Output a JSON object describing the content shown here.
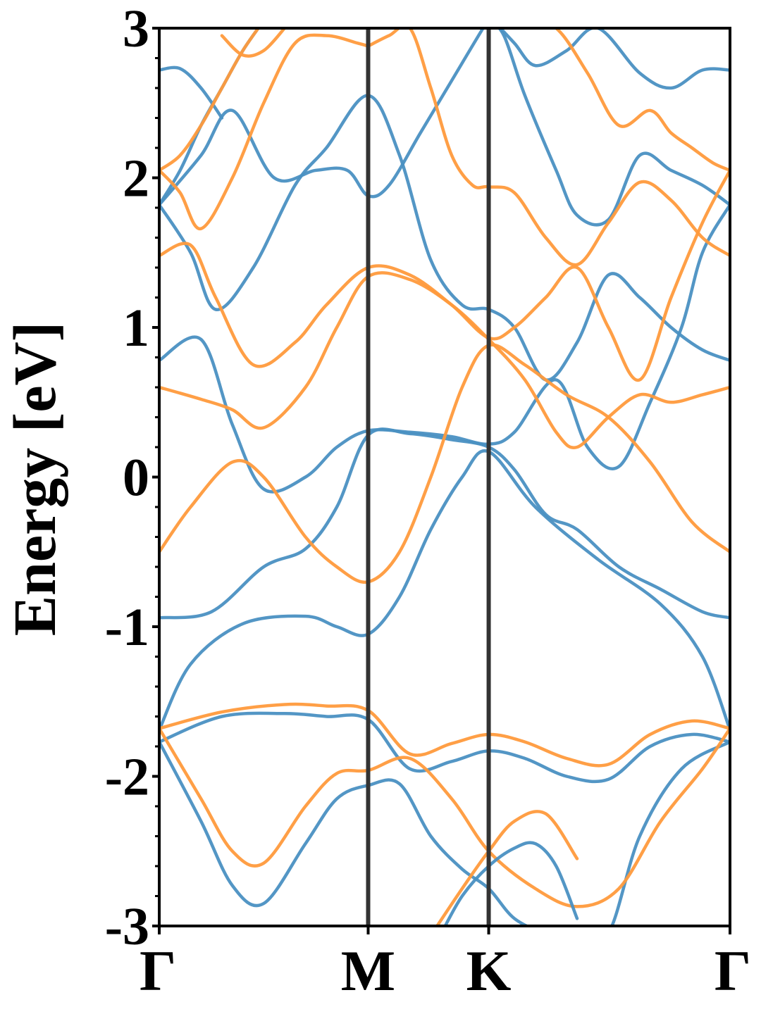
{
  "chart_data": {
    "type": "line",
    "title": "",
    "xlabel": "",
    "ylabel": "Energy [eV]",
    "ylim": [
      -3,
      3
    ],
    "yticks": [
      -3,
      -2,
      -1,
      0,
      1,
      2,
      3
    ],
    "ytick_labels": [
      "-3",
      "-2",
      "-1",
      "0",
      "1",
      "2",
      "3"
    ],
    "x_points": [
      {
        "label": "Γ",
        "pos": 0.0
      },
      {
        "label": "M",
        "pos": 1.0
      },
      {
        "label": "K",
        "pos": 1.577
      },
      {
        "label": "Γ",
        "pos": 2.732
      }
    ],
    "xlim": [
      0,
      2.732
    ],
    "grid": false,
    "colors": {
      "spin_up": "#4a90c2",
      "spin_down": "#ff9a3c",
      "high_symmetry_line": "#333333"
    },
    "series": [
      {
        "color_key": "spin_up",
        "x": [
          0,
          0.2,
          0.35,
          0.5,
          0.7,
          0.85,
          1.0,
          1.15,
          1.3,
          1.45,
          1.577,
          1.7,
          1.85,
          2.0,
          2.15,
          2.3,
          2.5,
          2.732
        ],
        "y": [
          -1.77,
          -2.3,
          -2.73,
          -2.85,
          -2.45,
          -2.15,
          -2.06,
          -2.05,
          -2.4,
          -2.62,
          -2.75,
          -2.95,
          -3.05,
          -3.1,
          -3.05,
          -2.4,
          -1.95,
          -1.77
        ]
      },
      {
        "color_key": "spin_up",
        "x": [
          0,
          0.3,
          0.6,
          0.8,
          1.0,
          1.2,
          1.4,
          1.577,
          1.75,
          1.95,
          2.15,
          2.35,
          2.55,
          2.732
        ],
        "y": [
          -1.77,
          -1.6,
          -1.58,
          -1.6,
          -1.62,
          -1.95,
          -1.9,
          -1.83,
          -1.88,
          -2.0,
          -2.02,
          -1.8,
          -1.72,
          -1.77
        ]
      },
      {
        "color_key": "spin_up",
        "x": [
          0,
          0.15,
          0.4,
          0.7,
          0.85,
          1.0,
          1.15,
          1.3,
          1.45,
          1.577,
          1.8,
          2.1,
          2.4,
          2.6,
          2.732
        ],
        "y": [
          -1.69,
          -1.25,
          -0.98,
          -0.93,
          -1.0,
          -1.05,
          -0.8,
          -0.35,
          0.0,
          0.17,
          -0.2,
          -0.55,
          -0.85,
          -1.2,
          -1.69
        ]
      },
      {
        "color_key": "spin_up",
        "x": [
          0,
          0.25,
          0.5,
          0.7,
          0.85,
          1.0,
          1.2,
          1.4,
          1.577,
          1.7,
          1.85,
          2.0,
          2.2,
          2.4,
          2.6,
          2.732
        ],
        "y": [
          -0.94,
          -0.9,
          -0.6,
          -0.48,
          -0.2,
          0.28,
          0.29,
          0.25,
          0.2,
          0.05,
          -0.25,
          -0.35,
          -0.6,
          -0.75,
          -0.9,
          -0.94
        ]
      },
      {
        "color_key": "spin_up",
        "x": [
          0,
          0.2,
          0.35,
          0.5,
          0.7,
          0.85,
          1.0,
          1.2,
          1.4,
          1.577,
          1.7,
          1.9,
          2.05,
          2.2,
          2.35,
          2.5,
          2.6,
          2.732
        ],
        "y": [
          0.78,
          0.92,
          0.35,
          -0.08,
          0.0,
          0.2,
          0.31,
          0.3,
          0.27,
          0.22,
          0.3,
          0.65,
          0.2,
          0.07,
          0.5,
          1.0,
          1.5,
          1.82
        ]
      },
      {
        "color_key": "spin_up",
        "x": [
          0,
          0.15,
          0.27,
          0.45,
          0.65,
          0.8,
          1.0,
          1.15,
          1.3,
          1.45,
          1.577,
          1.7,
          1.85,
          2.0,
          2.15,
          2.3,
          2.45,
          2.6,
          2.732
        ],
        "y": [
          1.82,
          1.5,
          1.12,
          1.4,
          1.95,
          2.2,
          2.55,
          2.15,
          1.45,
          1.15,
          1.12,
          1.0,
          0.65,
          0.9,
          1.35,
          1.2,
          1.0,
          0.85,
          0.78
        ]
      },
      {
        "color_key": "spin_up",
        "x": [
          0,
          0.2,
          0.35,
          0.55,
          0.75,
          0.9,
          1.0,
          1.1,
          1.25,
          1.4,
          1.55,
          1.577
        ],
        "y": [
          1.82,
          2.15,
          2.45,
          2.0,
          2.05,
          2.05,
          1.88,
          1.95,
          2.3,
          2.65,
          3.0,
          3.05
        ]
      },
      {
        "color_key": "spin_up",
        "x": [
          1.577,
          1.65,
          1.75,
          1.9,
          2.0,
          2.15,
          2.3,
          2.45,
          2.6,
          2.732
        ],
        "y": [
          3.05,
          2.95,
          2.55,
          2.05,
          1.75,
          1.72,
          2.15,
          2.05,
          1.95,
          1.82
        ]
      },
      {
        "color_key": "spin_up",
        "x": [
          0,
          0.1,
          0.2,
          0.3,
          0.4,
          0.5
        ],
        "y": [
          1.82,
          2.05,
          2.35,
          2.6,
          2.85,
          3.05
        ]
      },
      {
        "color_key": "spin_up",
        "x": [
          0,
          0.1,
          0.2,
          0.3
        ],
        "y": [
          2.72,
          2.73,
          2.6,
          2.4
        ]
      },
      {
        "color_key": "spin_up",
        "x": [
          1.6,
          1.7,
          1.8,
          1.95,
          2.1,
          2.3,
          2.45,
          2.6,
          2.732
        ],
        "y": [
          3.05,
          2.9,
          2.75,
          2.85,
          3.0,
          2.7,
          2.6,
          2.72,
          2.72
        ]
      },
      {
        "color_key": "spin_down",
        "x": [
          0,
          0.2,
          0.35,
          0.5,
          0.7,
          0.85,
          1.0,
          1.2,
          1.4,
          1.577,
          1.8,
          2.0,
          2.2,
          2.4,
          2.6,
          2.732
        ],
        "y": [
          -1.68,
          -2.15,
          -2.5,
          -2.58,
          -2.2,
          -1.98,
          -1.96,
          -1.88,
          -2.15,
          -2.5,
          -2.75,
          -2.87,
          -2.75,
          -2.3,
          -1.95,
          -1.68
        ]
      },
      {
        "color_key": "spin_down",
        "x": [
          0,
          0.3,
          0.6,
          0.8,
          1.0,
          1.2,
          1.4,
          1.577,
          1.75,
          1.95,
          2.15,
          2.35,
          2.55,
          2.732
        ],
        "y": [
          -1.68,
          -1.57,
          -1.52,
          -1.53,
          -1.56,
          -1.85,
          -1.78,
          -1.72,
          -1.77,
          -1.88,
          -1.92,
          -1.72,
          -1.63,
          -1.68
        ]
      },
      {
        "color_key": "spin_down",
        "x": [
          0,
          0.15,
          0.35,
          0.5,
          0.7,
          0.85,
          1.0,
          1.15,
          1.3,
          1.45,
          1.577,
          1.75,
          1.95,
          2.15,
          2.35,
          2.55,
          2.732
        ],
        "y": [
          -0.5,
          -0.2,
          0.1,
          0.0,
          -0.4,
          -0.6,
          -0.7,
          -0.5,
          0.0,
          0.6,
          0.88,
          0.75,
          0.55,
          0.4,
          0.1,
          -0.3,
          -0.5
        ]
      },
      {
        "color_key": "spin_down",
        "x": [
          0,
          0.2,
          0.35,
          0.5,
          0.7,
          0.85,
          1.0,
          1.2,
          1.4,
          1.577,
          1.75,
          1.9,
          2.0,
          2.15,
          2.3,
          2.45,
          2.6,
          2.732
        ],
        "y": [
          0.6,
          0.52,
          0.45,
          0.33,
          0.6,
          1.0,
          1.34,
          1.32,
          1.15,
          0.92,
          0.65,
          0.3,
          0.2,
          0.4,
          0.55,
          0.5,
          0.55,
          0.6
        ]
      },
      {
        "color_key": "spin_down",
        "x": [
          0,
          0.15,
          0.27,
          0.45,
          0.65,
          0.8,
          1.0,
          1.2,
          1.4,
          1.577,
          1.7,
          1.85,
          2.0,
          2.15,
          2.3,
          2.45,
          2.6,
          2.732
        ],
        "y": [
          1.48,
          1.55,
          1.2,
          0.75,
          0.9,
          1.15,
          1.4,
          1.35,
          1.15,
          0.93,
          1.0,
          1.2,
          1.4,
          1.0,
          0.65,
          1.2,
          1.7,
          2.05
        ]
      },
      {
        "color_key": "spin_down",
        "x": [
          0,
          0.1,
          0.2,
          0.35,
          0.5,
          0.65,
          0.8,
          0.95,
          1.0
        ],
        "y": [
          2.05,
          1.9,
          1.66,
          2.0,
          2.5,
          2.9,
          2.95,
          2.9,
          2.88
        ]
      },
      {
        "color_key": "spin_down",
        "x": [
          1.0,
          1.1,
          1.2,
          1.3,
          1.4,
          1.5,
          1.577,
          1.7,
          1.85,
          2.0,
          2.15,
          2.3,
          2.45,
          2.6,
          2.732
        ],
        "y": [
          2.88,
          2.95,
          3.0,
          2.6,
          2.15,
          1.95,
          1.94,
          1.9,
          1.6,
          1.42,
          1.7,
          1.97,
          1.85,
          1.6,
          1.48
        ]
      },
      {
        "color_key": "spin_down",
        "x": [
          0,
          0.1,
          0.2,
          0.3,
          0.4,
          0.5
        ],
        "y": [
          2.05,
          2.15,
          2.35,
          2.6,
          2.85,
          3.05
        ]
      },
      {
        "color_key": "spin_down",
        "x": [
          1.75,
          1.9,
          2.05,
          2.2,
          2.35,
          2.45,
          2.55,
          2.65,
          2.732
        ],
        "y": [
          3.05,
          3.0,
          2.7,
          2.35,
          2.45,
          2.3,
          2.2,
          2.1,
          2.05
        ]
      },
      {
        "color_key": "spin_down",
        "x": [
          0.3,
          0.4,
          0.5,
          0.6
        ],
        "y": [
          2.95,
          2.82,
          2.85,
          3.0
        ]
      },
      {
        "color_key": "spin_up",
        "x": [
          1.35,
          1.45,
          1.577,
          1.7,
          1.8,
          1.9,
          2.0
        ],
        "y": [
          -3.05,
          -2.8,
          -2.6,
          -2.48,
          -2.45,
          -2.6,
          -2.95
        ]
      },
      {
        "color_key": "spin_down",
        "x": [
          1.33,
          1.45,
          1.577,
          1.7,
          1.85,
          2.0
        ],
        "y": [
          -3.0,
          -2.75,
          -2.5,
          -2.3,
          -2.25,
          -2.55
        ]
      }
    ]
  }
}
